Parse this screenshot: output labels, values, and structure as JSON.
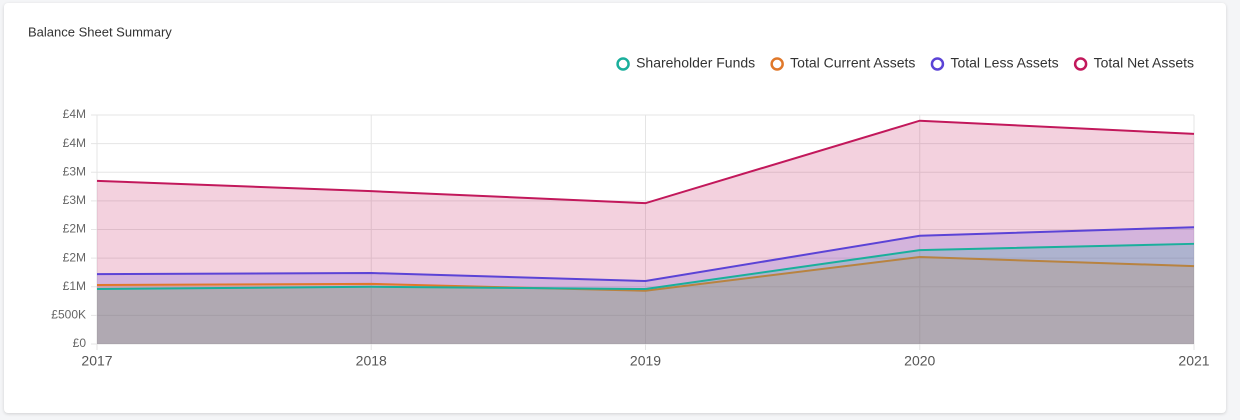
{
  "chart_data": {
    "type": "area",
    "title": "Balance Sheet Summary",
    "categories": [
      "2017",
      "2018",
      "2019",
      "2020",
      "2021"
    ],
    "series": [
      {
        "name": "Shareholder Funds",
        "color": "#1aaf9c",
        "values": [
          960000,
          1000000,
          960000,
          1640000,
          1750000
        ]
      },
      {
        "name": "Total Current Assets",
        "color": "#e0782a",
        "values": [
          1030000,
          1050000,
          930000,
          1520000,
          1360000
        ]
      },
      {
        "name": "Total Less Assets",
        "color": "#5b43d6",
        "values": [
          1220000,
          1240000,
          1100000,
          1890000,
          2040000
        ]
      },
      {
        "name": "Total Net Assets",
        "color": "#c2185b",
        "values": [
          2850000,
          2670000,
          2460000,
          3900000,
          3670000
        ]
      }
    ],
    "ylim": [
      0,
      4000000
    ],
    "yticks": [
      {
        "value": 0,
        "label": "£0"
      },
      {
        "value": 500000,
        "label": "£500K"
      },
      {
        "value": 1000000,
        "label": "£1M"
      },
      {
        "value": 1500000,
        "label": "£2M"
      },
      {
        "value": 2000000,
        "label": "£2M"
      },
      {
        "value": 2500000,
        "label": "£3M"
      },
      {
        "value": 3000000,
        "label": "£3M"
      },
      {
        "value": 3500000,
        "label": "£4M"
      },
      {
        "value": 4000000,
        "label": "£4M"
      }
    ],
    "grid": true,
    "legend": "top-right"
  }
}
